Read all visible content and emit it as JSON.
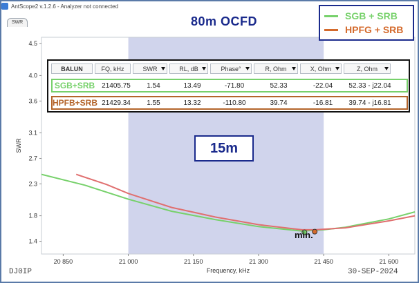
{
  "window": {
    "title": "AntScope2 v.1.2.6 - Analyzer not connected"
  },
  "tabs": [
    {
      "label": "SWR"
    }
  ],
  "plot_title": "80m OCFD",
  "band_label": "15m",
  "min_label": "min.",
  "callsign": "DJ0IP",
  "date": "30-SEP-2024",
  "legend": [
    {
      "label": "SGB + SRB",
      "color": "#77d16b"
    },
    {
      "label": "HPFG + SRB",
      "color": "#d46a2c"
    }
  ],
  "table": {
    "headers": [
      "BALUN",
      "FQ, kHz",
      "SWR",
      "RL, dB",
      "Phase°",
      "R, Ohm",
      "X, Ohm",
      "Z, Ohm"
    ],
    "rows": [
      {
        "balun": "SGB+SRB",
        "fq": "21405.75",
        "swr": "1.54",
        "rl": "13.49",
        "phase": "-71.80",
        "r": "52.33",
        "x": "-22.04",
        "z": "52.33 - j22.04",
        "border": "#77d16b"
      },
      {
        "balun": "HPFB+SRB",
        "fq": "21429.34",
        "swr": "1.55",
        "rl": "13.32",
        "phase": "-110.80",
        "r": "39.74",
        "x": "-16.81",
        "z": "39.74 - j16.81",
        "border": "#b4642a"
      }
    ]
  },
  "chart_data": {
    "type": "line",
    "xlabel": "Frequency, kHz",
    "ylabel": "SWR",
    "xlim": [
      20800,
      21660
    ],
    "ylim": [
      1.2,
      4.6
    ],
    "x_ticks": [
      "20 850",
      "21 000",
      "21 150",
      "21 300",
      "21 450",
      "21 600"
    ],
    "y_ticks": [
      "1.4",
      "1.8",
      "2.3",
      "2.7",
      "3.1",
      "3.6",
      "4.0",
      "4.5"
    ],
    "band_highlight": {
      "from": 21000,
      "to": 21450,
      "color": "#d0d4ec"
    },
    "series": [
      {
        "name": "SGB + SRB",
        "color": "#77d16b",
        "x": [
          20800,
          20900,
          21000,
          21100,
          21200,
          21300,
          21400,
          21450,
          21500,
          21600,
          21660
        ],
        "y": [
          2.45,
          2.28,
          2.06,
          1.87,
          1.74,
          1.63,
          1.56,
          1.58,
          1.62,
          1.75,
          1.86
        ]
      },
      {
        "name": "HPFG + SRB",
        "color": "#e06f6f",
        "x": [
          20880,
          20950,
          21000,
          21100,
          21200,
          21300,
          21400,
          21430,
          21500,
          21600,
          21660
        ],
        "y": [
          2.45,
          2.29,
          2.15,
          1.93,
          1.78,
          1.66,
          1.58,
          1.58,
          1.61,
          1.72,
          1.8
        ]
      }
    ],
    "markers": [
      {
        "x": 21405.75,
        "y": 1.54,
        "color": "#77d16b"
      },
      {
        "x": 21429.34,
        "y": 1.55,
        "color": "#d46a2c"
      }
    ]
  }
}
